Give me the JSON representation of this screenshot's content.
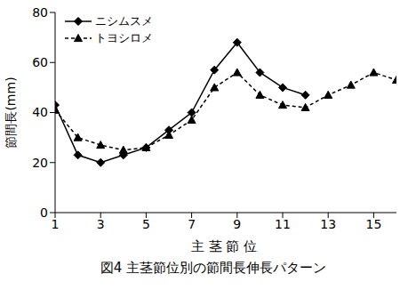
{
  "chart_data": {
    "type": "line",
    "title": "図4 主茎節位別の節間長伸長パターン",
    "x_label": "主 茎 節 位",
    "y_label": "節間長(mm)",
    "x": [
      1,
      2,
      3,
      4,
      5,
      6,
      7,
      8,
      9,
      10,
      11,
      12,
      13,
      14,
      15,
      16
    ],
    "series": [
      {
        "name": "ニシムスメ",
        "color": "#000000",
        "marker": "diamond",
        "line_style": "solid",
        "values": [
          43,
          23,
          20,
          23,
          26,
          33,
          40,
          57,
          68,
          56,
          50,
          47,
          null,
          null,
          null,
          null
        ]
      },
      {
        "name": "トヨシロメ",
        "color": "#000000",
        "marker": "triangle",
        "line_style": "dashed",
        "values": [
          41,
          30,
          27,
          25,
          26,
          31,
          37,
          50,
          56,
          47,
          43,
          42,
          47,
          51,
          56,
          53
        ]
      }
    ],
    "xlim": [
      1,
      16
    ],
    "xticks": [
      1,
      3,
      5,
      7,
      9,
      11,
      13,
      15
    ],
    "ylim": [
      0,
      80
    ],
    "yticks": [
      0,
      20,
      40,
      60,
      80
    ],
    "grid": false,
    "legend": "upper left"
  }
}
